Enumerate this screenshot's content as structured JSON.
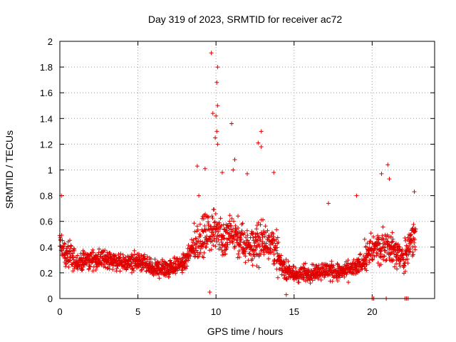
{
  "chart_data": {
    "type": "scatter",
    "title": "Day 319 of 2023, SRMTID for receiver ac72",
    "xlabel": "GPS time / hours",
    "ylabel": "SRMTID / TECUs",
    "xlim": [
      0,
      24
    ],
    "ylim": [
      0,
      2
    ],
    "xticks": [
      0,
      5,
      10,
      15,
      20
    ],
    "yticks": [
      0,
      0.2,
      0.4,
      0.6,
      0.8,
      1,
      1.2,
      1.4,
      1.6,
      1.8,
      2
    ],
    "grid": true,
    "marker": "+",
    "color": "#e00000",
    "series": [
      {
        "name": "SRMTID",
        "baseline_profile": {
          "hours": [
            0,
            0.3,
            1,
            2,
            3,
            4,
            5,
            6,
            7,
            8,
            8.8,
            9.5,
            10,
            10.5,
            11,
            12,
            13,
            13.6,
            14.2,
            15,
            16,
            17,
            18,
            19,
            20,
            21,
            22,
            22.8
          ],
          "median_tecu": [
            0.45,
            0.35,
            0.28,
            0.3,
            0.31,
            0.27,
            0.29,
            0.23,
            0.24,
            0.28,
            0.45,
            0.5,
            0.55,
            0.45,
            0.5,
            0.4,
            0.45,
            0.45,
            0.25,
            0.18,
            0.2,
            0.22,
            0.2,
            0.24,
            0.38,
            0.42,
            0.3,
            0.55
          ]
        },
        "notable_points": [
          {
            "x": 9.7,
            "y": 1.91
          },
          {
            "x": 10.1,
            "y": 1.8
          },
          {
            "x": 10.05,
            "y": 1.68
          },
          {
            "x": 10.1,
            "y": 1.5
          },
          {
            "x": 9.8,
            "y": 1.44
          },
          {
            "x": 10.0,
            "y": 1.42
          },
          {
            "x": 10.05,
            "y": 1.3
          },
          {
            "x": 9.95,
            "y": 1.25
          },
          {
            "x": 10.1,
            "y": 1.2
          },
          {
            "x": 12.9,
            "y": 1.3
          },
          {
            "x": 11.0,
            "y": 1.36
          },
          {
            "x": 12.7,
            "y": 1.21
          },
          {
            "x": 12.9,
            "y": 1.18
          },
          {
            "x": 11.2,
            "y": 1.08
          },
          {
            "x": 11.1,
            "y": 1.0
          },
          {
            "x": 8.8,
            "y": 1.03
          },
          {
            "x": 9.3,
            "y": 1.01
          },
          {
            "x": 10.4,
            "y": 0.98
          },
          {
            "x": 13.7,
            "y": 0.98
          },
          {
            "x": 12.0,
            "y": 0.97
          },
          {
            "x": 21.0,
            "y": 1.04
          },
          {
            "x": 20.6,
            "y": 0.97
          },
          {
            "x": 21.1,
            "y": 0.93
          },
          {
            "x": 19.0,
            "y": 0.8
          },
          {
            "x": 22.7,
            "y": 0.83
          },
          {
            "x": 0.1,
            "y": 0.8
          },
          {
            "x": 8.9,
            "y": 0.8
          },
          {
            "x": 17.2,
            "y": 0.74
          },
          {
            "x": 9.6,
            "y": 0.05
          },
          {
            "x": 14.5,
            "y": 0.03
          },
          {
            "x": 20.0,
            "y": 0.0
          },
          {
            "x": 20.1,
            "y": 0.0
          },
          {
            "x": 20.9,
            "y": 0.0
          },
          {
            "x": 22.1,
            "y": 0.0
          },
          {
            "x": 22.2,
            "y": 0.0
          },
          {
            "x": 22.3,
            "y": 0.0
          }
        ]
      }
    ]
  }
}
